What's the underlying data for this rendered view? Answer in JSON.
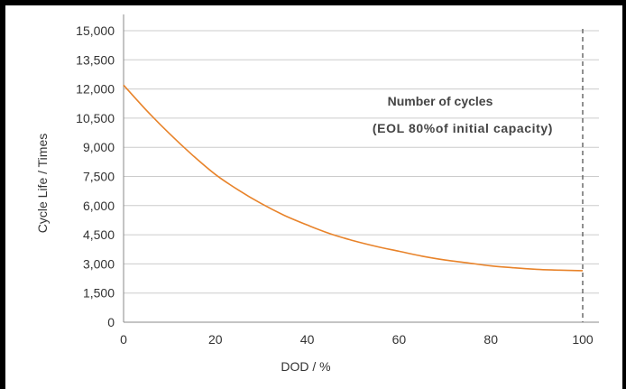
{
  "chart_data": {
    "type": "line",
    "title": "",
    "xlabel": "DOD / %",
    "ylabel": "Cycle Life / Times",
    "xlim": [
      0,
      100
    ],
    "ylim": [
      0,
      15000
    ],
    "x_ticks": [
      "0",
      "20",
      "40",
      "60",
      "80",
      "100"
    ],
    "x_tick_values": [
      0,
      20,
      40,
      60,
      80,
      100
    ],
    "y_ticks": [
      "0",
      "1,500",
      "3,000",
      "4,500",
      "6,000",
      "7,500",
      "9,000",
      "10,500",
      "12,000",
      "13,500",
      "15,000"
    ],
    "y_tick_values": [
      0,
      1500,
      3000,
      4500,
      6000,
      7500,
      9000,
      10500,
      12000,
      13500,
      15000
    ],
    "grid": "horizontal",
    "series": [
      {
        "color": "#e8832a",
        "x": [
          0,
          5,
          10,
          15,
          20,
          25,
          30,
          35,
          40,
          45,
          50,
          55,
          60,
          65,
          70,
          75,
          80,
          85,
          90,
          95,
          100
        ],
        "y": [
          12200,
          10900,
          9700,
          8600,
          7600,
          6800,
          6100,
          5500,
          5000,
          4550,
          4200,
          3900,
          3650,
          3400,
          3200,
          3050,
          2900,
          2800,
          2720,
          2680,
          2650
        ]
      }
    ],
    "reference_line": {
      "x": 100,
      "style": "dashed",
      "color": "#555555"
    },
    "annotations": [
      "Number of cycles",
      "(EOL 80%of initial capacity)"
    ]
  }
}
